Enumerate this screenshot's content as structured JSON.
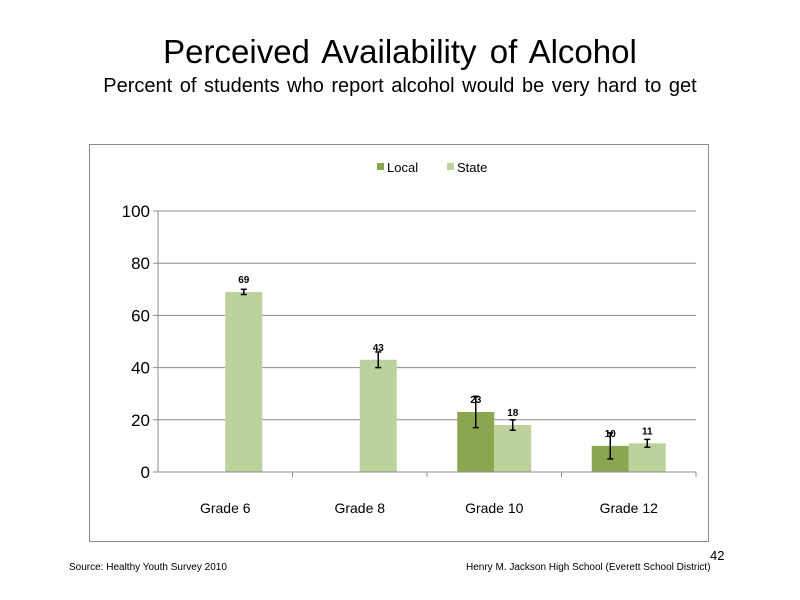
{
  "slide": {
    "title": "Perceived  Availability  of Alcohol",
    "subtitle": "Percent of students  who report alcohol would be very hard to get",
    "source": "Source: Healthy Youth Survey 2010",
    "school": "Henry M.  Jackson High  School (Everett School District)",
    "page_number": "42"
  },
  "chart_data": {
    "type": "bar",
    "title": "",
    "xlabel": "",
    "ylabel": "",
    "ylim": [
      0,
      100
    ],
    "yticks": [
      0,
      20,
      40,
      60,
      80,
      100
    ],
    "grid": true,
    "legend_position": "top",
    "categories": [
      "Grade 6",
      "Grade 8",
      "Grade 10",
      "Grade 12"
    ],
    "series": [
      {
        "name": "Local",
        "color": "#8ba64f",
        "values": [
          null,
          null,
          23,
          10
        ],
        "labels": [
          "",
          "",
          "23",
          "10"
        ],
        "error_low": [
          null,
          null,
          17,
          5
        ],
        "error_high": [
          null,
          null,
          29,
          15
        ]
      },
      {
        "name": "State",
        "color": "#bcd19c",
        "values": [
          69,
          43,
          18,
          11
        ],
        "labels": [
          "69",
          "43",
          "18",
          "11"
        ],
        "error_low": [
          68,
          40,
          16,
          9.5
        ],
        "error_high": [
          70,
          46,
          20,
          12.5
        ]
      }
    ]
  }
}
